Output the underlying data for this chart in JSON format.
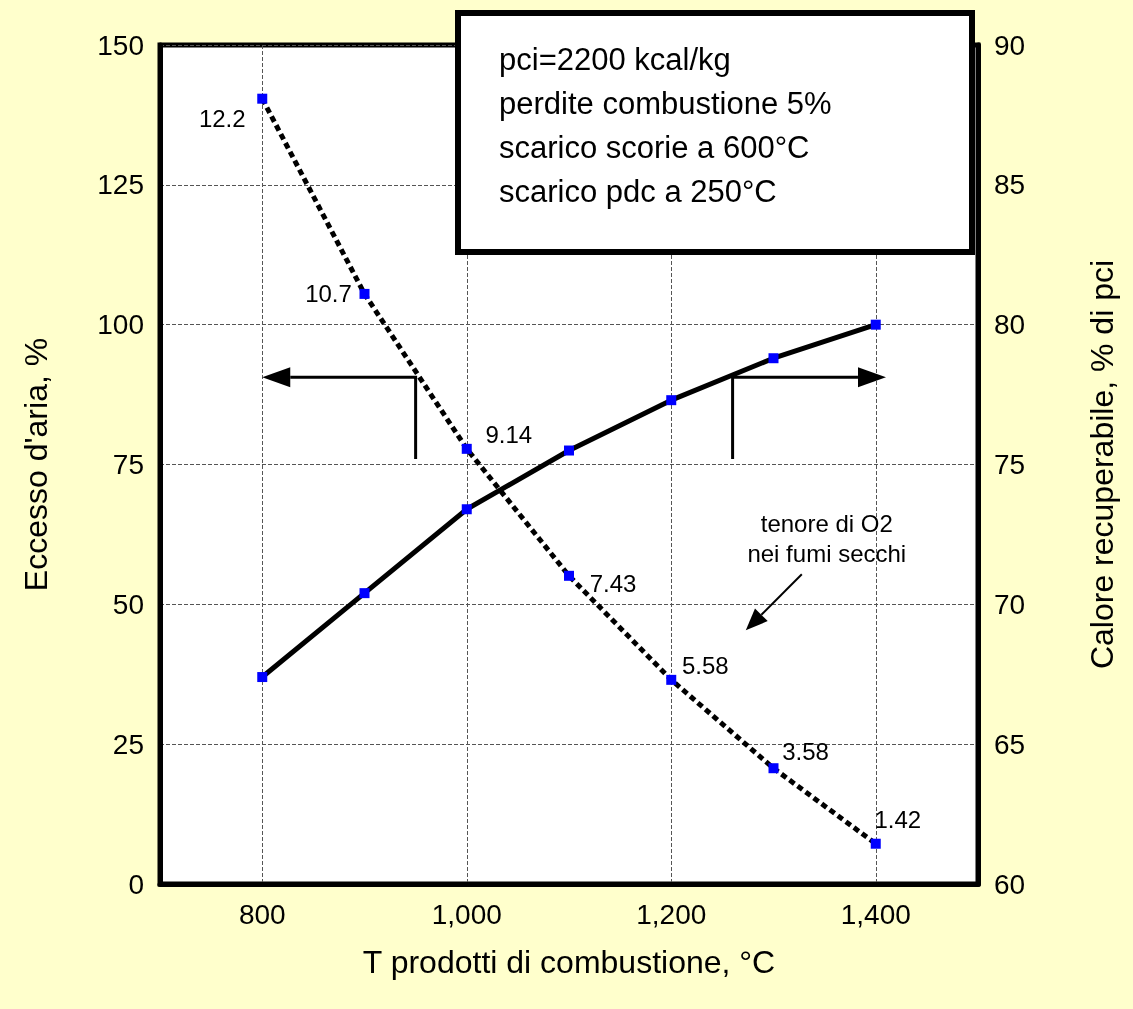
{
  "chart_data": {
    "type": "line",
    "xlabel": "T prodotti di combustione, °C",
    "ylabel": "Eccesso d'aria, %",
    "y2label": "Calore recuperabile, % di pci",
    "x": [
      800,
      900,
      1000,
      1100,
      1200,
      1300,
      1400
    ],
    "xlim": [
      700,
      1500
    ],
    "xticks": [
      {
        "value": 800,
        "label": "800"
      },
      {
        "value": 1000,
        "label": "1,000"
      },
      {
        "value": 1200,
        "label": "1,200"
      },
      {
        "value": 1400,
        "label": "1,400"
      }
    ],
    "ylim": [
      0,
      150
    ],
    "yticks": [
      0,
      25,
      50,
      75,
      100,
      125,
      150
    ],
    "y2lim": [
      60,
      90
    ],
    "y2ticks": [
      60,
      65,
      70,
      75,
      80,
      85,
      90
    ],
    "series": [
      {
        "color": "#000000",
        "line_style": "dashed",
        "values": [
          140.4,
          105.5,
          77.8,
          55.1,
          36.5,
          20.7,
          7.2
        ]
      },
      {
        "color": "#000000",
        "line_style": "solid",
        "axis": "y2",
        "values": [
          67.4,
          70.4,
          73.4,
          75.5,
          77.3,
          78.8,
          80.0
        ]
      }
    ],
    "marker": "square",
    "grid": true,
    "annotations": [
      "pci=2200 kcal/kg",
      "perdite combustione 5%",
      "scarico scorie a 600°C",
      "scarico pdc a 250°C",
      "tenore di O2\nnei fumi secchi",
      {
        "text": "12.2",
        "x": 800,
        "y": 140.4
      },
      {
        "text": "10.7",
        "x": 900,
        "y": 105.5
      },
      {
        "text": "9.14",
        "x": 1000,
        "y": 77.8
      },
      {
        "text": "7.43",
        "x": 1100,
        "y": 55.1
      },
      {
        "text": "5.58",
        "x": 1200,
        "y": 36.5
      },
      {
        "text": "3.58",
        "x": 1300,
        "y": 20.7
      },
      {
        "text": "1.42",
        "x": 1400,
        "y": 7.2
      }
    ]
  }
}
